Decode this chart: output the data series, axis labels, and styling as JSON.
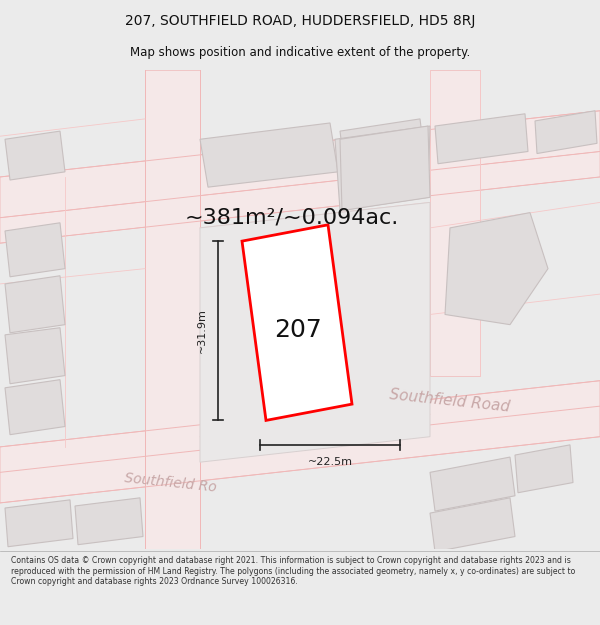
{
  "title_line1": "207, SOUTHFIELD ROAD, HUDDERSFIELD, HD5 8RJ",
  "title_line2": "Map shows position and indicative extent of the property.",
  "area_text": "~381m²/~0.094ac.",
  "number_label": "207",
  "dim_width": "~22.5m",
  "dim_height": "~31.9m",
  "road_label_right": "Southfield Road",
  "road_label_left": "Southfield Ro",
  "footer_text": "Contains OS data © Crown copyright and database right 2021. This information is subject to Crown copyright and database rights 2023 and is reproduced with the permission of HM Land Registry. The polygons (including the associated geometry, namely x, y co-ordinates) are subject to Crown copyright and database rights 2023 Ordnance Survey 100026316.",
  "fig_bg": "#ebebeb",
  "map_bg": "#ffffff",
  "building_fill": "#e0dcdc",
  "building_edge": "#c8c0c0",
  "highlight_fill": "#ffffff",
  "highlight_edge": "#ff0000",
  "road_line": "#f0b8b8",
  "road_fill": "#f5e8e8",
  "dim_color": "#222222",
  "text_color": "#111111",
  "road_text_color": "#c8a8a8",
  "footer_bg": "#ffffff",
  "title_fs": 10,
  "subtitle_fs": 8.5,
  "area_fs": 16,
  "number_fs": 18,
  "road_label_fs": 11,
  "dim_fs": 8,
  "footer_fs": 5.6
}
